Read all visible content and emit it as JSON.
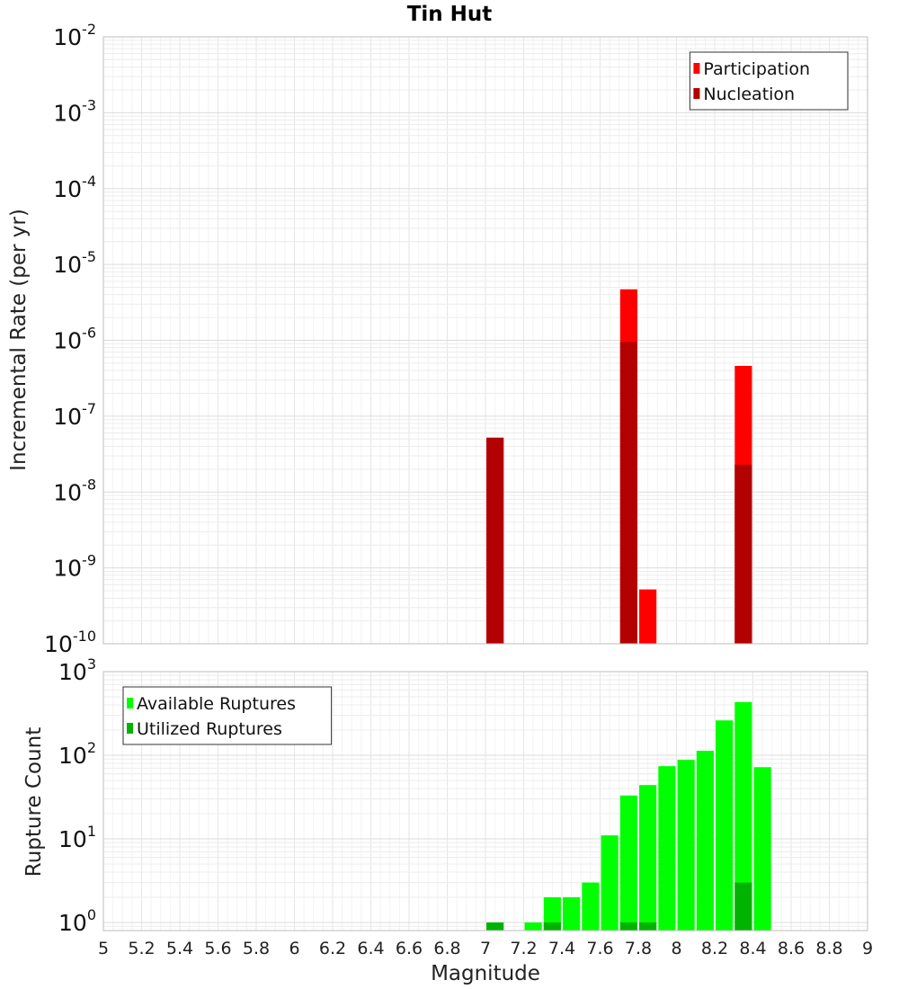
{
  "chart_data": [
    {
      "type": "bar",
      "title": "Tin Hut",
      "xlabel": "",
      "ylabel": "Incremental Rate (per yr)",
      "y_scale": "log",
      "xlim": [
        5,
        9
      ],
      "ylim": [
        1e-10,
        0.01
      ],
      "y_tick_exponents": [
        -10,
        -9,
        -8,
        -7,
        -6,
        -5,
        -4,
        -3,
        -2
      ],
      "grid": true,
      "legend_position": "top-right",
      "bar_width": 0.09,
      "series": [
        {
          "name": "Participation",
          "color": "#ff0000",
          "points": [
            {
              "x": 7.05,
              "y": 5.2e-08
            },
            {
              "x": 7.75,
              "y": 4.7e-06
            },
            {
              "x": 7.85,
              "y": 5.2e-10
            },
            {
              "x": 8.35,
              "y": 4.6e-07
            }
          ]
        },
        {
          "name": "Nucleation",
          "color": "#b30000",
          "points": [
            {
              "x": 7.05,
              "y": 5.2e-08
            },
            {
              "x": 7.75,
              "y": 9.5e-07
            },
            {
              "x": 8.35,
              "y": 2.3e-08
            }
          ]
        }
      ]
    },
    {
      "type": "bar",
      "title": "",
      "xlabel": "Magnitude",
      "ylabel": "Rupture Count",
      "y_scale": "log",
      "xlim": [
        5,
        9
      ],
      "ylim": [
        0.8,
        1000
      ],
      "y_tick_exponents": [
        0,
        1,
        2,
        3
      ],
      "x_ticks": [
        "5",
        "5.2",
        "5.4",
        "5.6",
        "5.8",
        "6",
        "6.2",
        "6.4",
        "6.6",
        "6.8",
        "7",
        "7.2",
        "7.4",
        "7.6",
        "7.8",
        "8",
        "8.2",
        "8.4",
        "8.6",
        "8.8",
        "9"
      ],
      "grid": true,
      "legend_position": "top-left",
      "bar_width": 0.09,
      "series": [
        {
          "name": "Available Ruptures",
          "color": "#00ff00",
          "points": [
            {
              "x": 7.05,
              "y": 1
            },
            {
              "x": 7.25,
              "y": 1
            },
            {
              "x": 7.35,
              "y": 2
            },
            {
              "x": 7.45,
              "y": 2
            },
            {
              "x": 7.55,
              "y": 3
            },
            {
              "x": 7.65,
              "y": 11
            },
            {
              "x": 7.75,
              "y": 33
            },
            {
              "x": 7.85,
              "y": 44
            },
            {
              "x": 7.95,
              "y": 74
            },
            {
              "x": 8.05,
              "y": 88
            },
            {
              "x": 8.15,
              "y": 113
            },
            {
              "x": 8.25,
              "y": 261
            },
            {
              "x": 8.35,
              "y": 432
            },
            {
              "x": 8.45,
              "y": 72
            }
          ]
        },
        {
          "name": "Utilized Ruptures",
          "color": "#00b300",
          "points": [
            {
              "x": 7.05,
              "y": 1
            },
            {
              "x": 7.35,
              "y": 1
            },
            {
              "x": 7.75,
              "y": 1
            },
            {
              "x": 7.85,
              "y": 1
            },
            {
              "x": 8.35,
              "y": 3
            }
          ]
        }
      ]
    }
  ]
}
